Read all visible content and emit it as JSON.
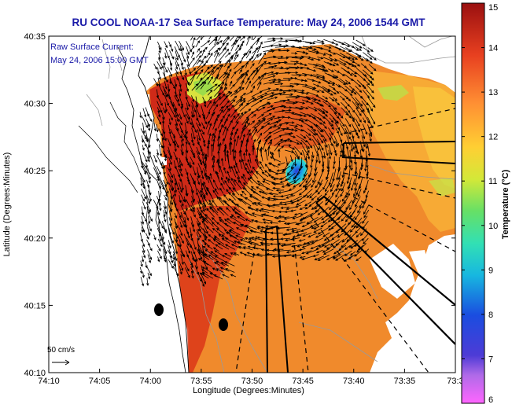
{
  "title": "RU COOL  NOAA-17  Sea Surface Temperature:  May 24, 2006 1544 GMT",
  "annotation": {
    "line1": "Raw Surface Current:",
    "line2": "May 24, 2006 15:00 GMT"
  },
  "scale": {
    "label": "50 cm/s"
  },
  "colors": {
    "land": "#ffffff",
    "coast": "#000000",
    "bathymetry": "#9a9a9a",
    "vectors": "#000000",
    "title": "#1a1aa8"
  },
  "chart_data": {
    "type": "heatmap",
    "title": "RU COOL  NOAA-17  Sea Surface Temperature:  May 24, 2006 1544 GMT",
    "xlabel": "Longitude (Degrees:Minutes)",
    "ylabel": "Latitude (Degrees:Minutes)",
    "x_ticks": [
      "74:10",
      "74:05",
      "74:00",
      "73:55",
      "73:50",
      "73:45",
      "73:40",
      "73:35",
      "73:3"
    ],
    "y_ticks": [
      "40:10",
      "40:15",
      "40:20",
      "40:25",
      "40:30",
      "40:35"
    ],
    "xlim": [
      "74:10 W",
      "73:30 W"
    ],
    "ylim": [
      "40:10 N",
      "40:35 N"
    ],
    "colorbar": {
      "label": "Temperature (°C)",
      "ticks": [
        "6",
        "7",
        "8",
        "9",
        "10",
        "11",
        "12",
        "13",
        "14",
        "15"
      ],
      "range": [
        6,
        15
      ]
    },
    "features": {
      "cold_spot_temp_c": 8.5,
      "nearshore_temp_c": 14.5,
      "offshore_temp_c": 12.5,
      "surface_current_vectors": true,
      "grid": false
    }
  }
}
